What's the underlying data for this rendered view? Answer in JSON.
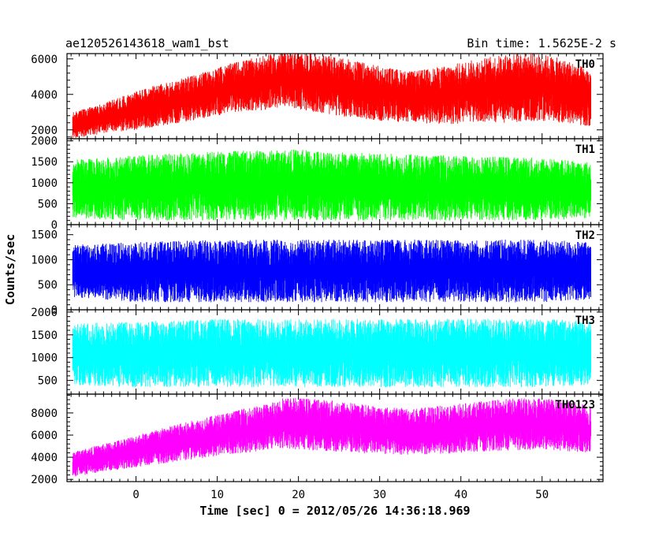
{
  "header": {
    "left": "ae120526143618_wam1_bst",
    "right": "Bin time: 1.5625E-2 s"
  },
  "chart_data": {
    "type": "line",
    "xlabel": "Time [sec] 0 = 2012/05/26 14:36:18.969",
    "ylabel": "Counts/sec",
    "xlim": [
      -8.5,
      57.5
    ],
    "x_ticks": [
      0,
      10,
      20,
      30,
      40,
      50
    ],
    "x_range_data": [
      -7.8,
      56.0
    ],
    "panels": [
      {
        "name": "TH0",
        "color": "#ff0000",
        "ylim": [
          1500,
          6300
        ],
        "y_ticks": [
          2000,
          4000,
          6000
        ],
        "envelope": {
          "x": [
            -7.8,
            -4,
            0,
            4,
            8,
            12,
            16,
            18,
            22,
            26,
            30,
            34,
            38,
            42,
            46,
            50,
            54,
            56
          ],
          "min": [
            1500,
            1800,
            2000,
            2300,
            2600,
            3000,
            3100,
            3300,
            3000,
            2700,
            2500,
            2400,
            2300,
            2400,
            2400,
            2500,
            2300,
            2200
          ],
          "max": [
            3000,
            3500,
            4200,
            4700,
            5200,
            5800,
            6200,
            6400,
            6300,
            6000,
            5600,
            5300,
            5600,
            6000,
            6300,
            6300,
            5800,
            5300
          ]
        }
      },
      {
        "name": "TH1",
        "color": "#00ff00",
        "ylim": [
          0,
          2050
        ],
        "y_ticks": [
          0,
          500,
          1000,
          1500,
          2000
        ],
        "envelope": {
          "x": [
            -7.8,
            0,
            10,
            20,
            30,
            40,
            50,
            56
          ],
          "min": [
            150,
            100,
            100,
            100,
            100,
            100,
            100,
            150
          ],
          "max": [
            1550,
            1650,
            1750,
            1800,
            1700,
            1650,
            1600,
            1500
          ]
        }
      },
      {
        "name": "TH2",
        "color": "#0000ff",
        "ylim": [
          0,
          1700
        ],
        "y_ticks": [
          0,
          500,
          1000,
          1500
        ],
        "envelope": {
          "x": [
            -7.8,
            0,
            10,
            20,
            30,
            40,
            50,
            56
          ],
          "min": [
            250,
            150,
            150,
            150,
            150,
            150,
            150,
            200
          ],
          "max": [
            1300,
            1350,
            1400,
            1400,
            1400,
            1400,
            1400,
            1350
          ]
        }
      },
      {
        "name": "TH3",
        "color": "#00ffff",
        "ylim": [
          200,
          2050
        ],
        "y_ticks": [
          500,
          1000,
          1500,
          2000
        ],
        "envelope": {
          "x": [
            -7.8,
            0,
            10,
            20,
            30,
            40,
            50,
            56
          ],
          "min": [
            400,
            350,
            350,
            350,
            350,
            350,
            350,
            400
          ],
          "max": [
            1750,
            1800,
            1850,
            1850,
            1850,
            1850,
            1850,
            1800
          ]
        }
      },
      {
        "name": "TH0123",
        "color": "#ff00ff",
        "ylim": [
          1800,
          9700
        ],
        "y_ticks": [
          2000,
          4000,
          6000,
          8000
        ],
        "envelope": {
          "x": [
            -7.8,
            -4,
            0,
            4,
            8,
            12,
            16,
            18,
            22,
            26,
            30,
            34,
            38,
            42,
            46,
            50,
            54,
            56
          ],
          "min": [
            2200,
            2700,
            3100,
            3500,
            3900,
            4300,
            4600,
            4800,
            4600,
            4400,
            4300,
            4200,
            4300,
            4500,
            4600,
            4700,
            4500,
            4400
          ],
          "max": [
            4500,
            5200,
            6000,
            6800,
            7500,
            8200,
            8800,
            9400,
            9300,
            9000,
            8600,
            8400,
            8700,
            9000,
            9300,
            9400,
            9000,
            8600
          ]
        }
      }
    ]
  }
}
